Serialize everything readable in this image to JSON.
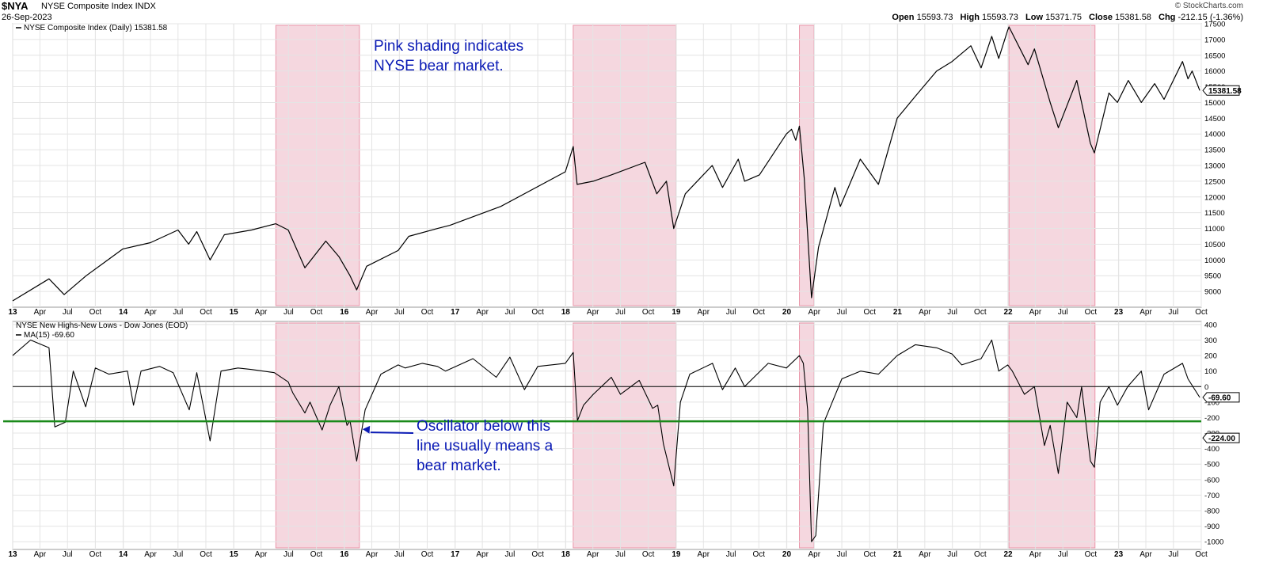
{
  "header": {
    "symbol": "$NYA",
    "name": "NYSE Composite Index  INDX",
    "date": "26-Sep-2023",
    "brand": "© StockCharts.com",
    "open_label": "Open",
    "open": "15593.73",
    "high_label": "High",
    "high": "15593.73",
    "low_label": "Low",
    "low": "15371.75",
    "close_label": "Close",
    "close": "15381.58",
    "chg_label": "Chg",
    "chg": "-212.15 (-1.36%)"
  },
  "colors": {
    "shade_fill": "#f5d3dc",
    "shade_stroke": "#e88aa0",
    "price_line": "#000000",
    "threshold_line": "#1a8a1a",
    "annotation_text": "#0a1ab5",
    "grid": "#e4e4e4"
  },
  "chart_data": [
    {
      "type": "line",
      "legend": "NYSE Composite Index (Daily) 15381.58",
      "last_value_label": "15381.58",
      "x_range": [
        "2013-01-01",
        "2023-10-01"
      ],
      "ylim": [
        8500,
        17500
      ],
      "yticks": [
        9000,
        9500,
        10000,
        10500,
        11000,
        11500,
        12000,
        12500,
        13000,
        13500,
        14000,
        14500,
        15000,
        15500,
        16000,
        16500,
        17000,
        17500
      ],
      "series": [
        {
          "x": [
            "2013-01-01",
            "2013-05-01",
            "2013-06-20",
            "2013-09-01",
            "2013-12-31",
            "2014-04-01",
            "2014-07-01",
            "2014-08-05",
            "2014-09-01",
            "2014-10-15",
            "2014-12-01",
            "2015-03-01",
            "2015-05-20",
            "2015-06-30",
            "2015-08-24",
            "2015-11-01",
            "2015-12-15",
            "2016-01-20",
            "2016-02-11",
            "2016-03-15",
            "2016-06-27",
            "2016-08-01",
            "2016-11-04",
            "2016-12-15",
            "2017-06-01",
            "2017-12-31",
            "2018-01-26",
            "2018-02-08",
            "2018-04-02",
            "2018-06-01",
            "2018-09-20",
            "2018-10-29",
            "2018-11-30",
            "2018-12-24",
            "2019-01-31",
            "2019-04-30",
            "2019-06-03",
            "2019-07-25",
            "2019-08-15",
            "2019-10-03",
            "2019-12-31",
            "2020-01-17",
            "2020-01-31",
            "2020-02-12",
            "2020-02-28",
            "2020-03-23",
            "2020-04-15",
            "2020-06-08",
            "2020-06-26",
            "2020-08-31",
            "2020-10-30",
            "2020-12-31",
            "2021-03-01",
            "2021-05-10",
            "2021-06-30",
            "2021-08-31",
            "2021-10-04",
            "2021-11-08",
            "2021-12-01",
            "2021-12-31",
            "2022-01-04",
            "2022-03-08",
            "2022-03-29",
            "2022-05-20",
            "2022-06-16",
            "2022-08-16",
            "2022-09-30",
            "2022-10-13",
            "2022-11-30",
            "2022-12-28",
            "2023-02-02",
            "2023-03-17",
            "2023-04-30",
            "2023-05-31",
            "2023-07-31",
            "2023-08-18",
            "2023-09-01",
            "2023-09-26"
          ],
          "y": [
            8700,
            9400,
            8900,
            9500,
            10350,
            10550,
            10950,
            10500,
            10900,
            10000,
            10800,
            10950,
            11150,
            10950,
            9750,
            10600,
            10100,
            9500,
            9050,
            9800,
            10300,
            10750,
            11000,
            11100,
            11700,
            12800,
            13600,
            12400,
            12500,
            12700,
            13100,
            12100,
            12500,
            11000,
            12100,
            13000,
            12300,
            13200,
            12500,
            12700,
            14000,
            14150,
            13800,
            14250,
            12600,
            8800,
            10400,
            12300,
            11700,
            13200,
            12400,
            14500,
            15200,
            16000,
            16300,
            16800,
            16100,
            17100,
            16400,
            17300,
            17400,
            16200,
            16700,
            15000,
            14200,
            15700,
            13700,
            13400,
            15300,
            15000,
            15700,
            15000,
            15600,
            15100,
            16300,
            15750,
            16000,
            15380
          ]
        }
      ]
    },
    {
      "type": "line",
      "legend": "NYSE New Highs-New Lows - Dow Jones (EOD)",
      "ma_label": "MA(15) -69.60",
      "last_value_label": "-69.60",
      "threshold_label": "-224.00",
      "threshold": -224,
      "zero_line": 0,
      "x_range": [
        "2013-01-01",
        "2023-10-01"
      ],
      "ylim": [
        -1050,
        420
      ],
      "yticks": [
        400,
        300,
        200,
        100,
        0,
        -100,
        -200,
        -300,
        -400,
        -500,
        -600,
        -700,
        -800,
        -900,
        -1000
      ],
      "series": [
        {
          "x": [
            "2013-01-01",
            "2013-03-01",
            "2013-05-01",
            "2013-05-20",
            "2013-06-24",
            "2013-07-20",
            "2013-08-30",
            "2013-10-01",
            "2013-11-15",
            "2014-01-15",
            "2014-02-04",
            "2014-03-01",
            "2014-05-01",
            "2014-06-15",
            "2014-08-07",
            "2014-09-01",
            "2014-10-15",
            "2014-11-20",
            "2015-01-15",
            "2015-03-01",
            "2015-05-15",
            "2015-06-30",
            "2015-07-15",
            "2015-08-24",
            "2015-09-10",
            "2015-10-20",
            "2015-11-15",
            "2015-12-14",
            "2016-01-10",
            "2016-01-20",
            "2016-02-11",
            "2016-03-10",
            "2016-05-01",
            "2016-06-27",
            "2016-07-20",
            "2016-09-15",
            "2016-11-04",
            "2016-11-30",
            "2017-03-01",
            "2017-05-17",
            "2017-07-01",
            "2017-08-18",
            "2017-10-01",
            "2017-12-31",
            "2018-01-26",
            "2018-02-09",
            "2018-03-01",
            "2018-04-02",
            "2018-06-01",
            "2018-07-01",
            "2018-09-01",
            "2018-10-15",
            "2018-11-01",
            "2018-11-20",
            "2018-12-24",
            "2019-01-15",
            "2019-02-15",
            "2019-05-01",
            "2019-06-03",
            "2019-07-15",
            "2019-08-15",
            "2019-09-15",
            "2019-11-01",
            "2019-12-31",
            "2020-02-12",
            "2020-02-25",
            "2020-03-10",
            "2020-03-23",
            "2020-04-06",
            "2020-05-01",
            "2020-07-01",
            "2020-09-01",
            "2020-10-30",
            "2020-12-31",
            "2021-03-01",
            "2021-05-10",
            "2021-06-30",
            "2021-08-01",
            "2021-10-04",
            "2021-11-08",
            "2021-12-01",
            "2021-12-31",
            "2022-01-15",
            "2022-02-24",
            "2022-03-29",
            "2022-05-01",
            "2022-05-20",
            "2022-06-16",
            "2022-07-15",
            "2022-08-16",
            "2022-09-01",
            "2022-09-30",
            "2022-10-13",
            "2022-11-01",
            "2022-11-30",
            "2022-12-28",
            "2023-01-31",
            "2023-03-17",
            "2023-04-10",
            "2023-05-31",
            "2023-07-31",
            "2023-08-18",
            "2023-09-26"
          ],
          "y": [
            200,
            300,
            250,
            -260,
            -230,
            100,
            -130,
            120,
            80,
            100,
            -120,
            100,
            130,
            90,
            -150,
            90,
            -350,
            100,
            120,
            110,
            90,
            30,
            -40,
            -170,
            -100,
            -280,
            -120,
            0,
            -250,
            -220,
            -480,
            -150,
            80,
            140,
            120,
            150,
            130,
            100,
            180,
            60,
            190,
            -20,
            130,
            150,
            220,
            -220,
            -120,
            -50,
            60,
            -50,
            40,
            -140,
            -120,
            -370,
            -640,
            -100,
            80,
            150,
            -20,
            120,
            0,
            60,
            150,
            120,
            200,
            150,
            -150,
            -1000,
            -960,
            -240,
            50,
            100,
            80,
            200,
            270,
            250,
            210,
            140,
            180,
            300,
            100,
            140,
            100,
            -50,
            0,
            -380,
            -250,
            -560,
            -100,
            -200,
            0,
            -480,
            -520,
            -100,
            0,
            -120,
            0,
            100,
            -150,
            80,
            150,
            50,
            -70
          ]
        }
      ]
    }
  ],
  "bear_periods": [
    {
      "start": "2015-05-20",
      "end": "2016-02-20"
    },
    {
      "start": "2018-01-26",
      "end": "2018-12-31"
    },
    {
      "start": "2020-02-12",
      "end": "2020-03-31"
    },
    {
      "start": "2022-01-04",
      "end": "2022-10-15"
    }
  ],
  "x_axis": {
    "ticks": [
      {
        "date": "2013-01-01",
        "label": "13",
        "year": true
      },
      {
        "date": "2013-04-01",
        "label": "Apr"
      },
      {
        "date": "2013-07-01",
        "label": "Jul"
      },
      {
        "date": "2013-10-01",
        "label": "Oct"
      },
      {
        "date": "2014-01-01",
        "label": "14",
        "year": true
      },
      {
        "date": "2014-04-01",
        "label": "Apr"
      },
      {
        "date": "2014-07-01",
        "label": "Jul"
      },
      {
        "date": "2014-10-01",
        "label": "Oct"
      },
      {
        "date": "2015-01-01",
        "label": "15",
        "year": true
      },
      {
        "date": "2015-04-01",
        "label": "Apr"
      },
      {
        "date": "2015-07-01",
        "label": "Jul"
      },
      {
        "date": "2015-10-01",
        "label": "Oct"
      },
      {
        "date": "2016-01-01",
        "label": "16",
        "year": true
      },
      {
        "date": "2016-04-01",
        "label": "Apr"
      },
      {
        "date": "2016-07-01",
        "label": "Jul"
      },
      {
        "date": "2016-10-01",
        "label": "Oct"
      },
      {
        "date": "2017-01-01",
        "label": "17",
        "year": true
      },
      {
        "date": "2017-04-01",
        "label": "Apr"
      },
      {
        "date": "2017-07-01",
        "label": "Jul"
      },
      {
        "date": "2017-10-01",
        "label": "Oct"
      },
      {
        "date": "2018-01-01",
        "label": "18",
        "year": true
      },
      {
        "date": "2018-04-01",
        "label": "Apr"
      },
      {
        "date": "2018-07-01",
        "label": "Jul"
      },
      {
        "date": "2018-10-01",
        "label": "Oct"
      },
      {
        "date": "2019-01-01",
        "label": "19",
        "year": true
      },
      {
        "date": "2019-04-01",
        "label": "Apr"
      },
      {
        "date": "2019-07-01",
        "label": "Jul"
      },
      {
        "date": "2019-10-01",
        "label": "Oct"
      },
      {
        "date": "2020-01-01",
        "label": "20",
        "year": true
      },
      {
        "date": "2020-04-01",
        "label": "Apr"
      },
      {
        "date": "2020-07-01",
        "label": "Jul"
      },
      {
        "date": "2020-10-01",
        "label": "Oct"
      },
      {
        "date": "2021-01-01",
        "label": "21",
        "year": true
      },
      {
        "date": "2021-04-01",
        "label": "Apr"
      },
      {
        "date": "2021-07-01",
        "label": "Jul"
      },
      {
        "date": "2021-10-01",
        "label": "Oct"
      },
      {
        "date": "2022-01-01",
        "label": "22",
        "year": true
      },
      {
        "date": "2022-04-01",
        "label": "Apr"
      },
      {
        "date": "2022-07-01",
        "label": "Jul"
      },
      {
        "date": "2022-10-01",
        "label": "Oct"
      },
      {
        "date": "2023-01-01",
        "label": "23",
        "year": true
      },
      {
        "date": "2023-04-01",
        "label": "Apr"
      },
      {
        "date": "2023-07-01",
        "label": "Jul"
      },
      {
        "date": "2023-10-01",
        "label": "Oct"
      }
    ]
  },
  "annotations": {
    "top_lines": [
      "Pink shading indicates",
      "NYSE bear market."
    ],
    "bottom_lines": [
      "Oscillator below this",
      "line usually means a",
      "bear market."
    ],
    "arrow_target": {
      "date": "2016-02-20",
      "value": -200
    }
  }
}
